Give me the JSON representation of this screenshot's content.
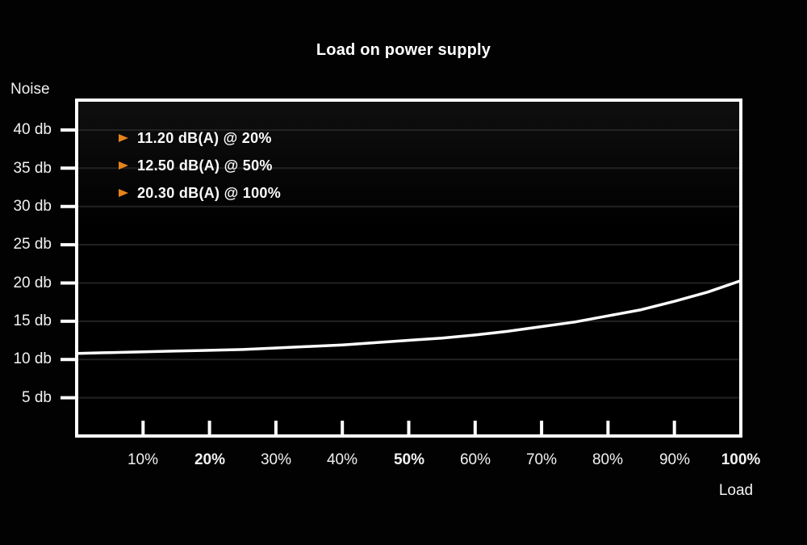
{
  "title": "Load on power supply",
  "colors": {
    "accent": "#e8821c",
    "line": "#ffffff",
    "grid": "#222222",
    "background": "#020202",
    "text": "#f2f2f2"
  },
  "legend": {
    "items": [
      {
        "label": "11.20 dB(A) @ 20%"
      },
      {
        "label": "12.50 dB(A) @ 50%"
      },
      {
        "label": "20.30 dB(A) @ 100%"
      }
    ]
  },
  "chart_data": {
    "type": "line",
    "title": "Load on power supply",
    "xlabel": "Load",
    "ylabel": "Noise",
    "xlim": [
      0,
      100
    ],
    "ylim": [
      0,
      43.9
    ],
    "grid": true,
    "legend_position": "top-left",
    "x_tick_values": [
      10,
      20,
      30,
      40,
      50,
      60,
      70,
      80,
      90,
      100
    ],
    "x_tick_labels": [
      "10%",
      "20%",
      "30%",
      "40%",
      "50%",
      "60%",
      "70%",
      "80%",
      "90%",
      "100%"
    ],
    "x_tick_bold_labels": [
      "20%",
      "50%",
      "100%"
    ],
    "y_tick_values": [
      40,
      35,
      30,
      25,
      20,
      15,
      10,
      5
    ],
    "y_tick_labels": [
      "40 db",
      "35 db",
      "30 db",
      "25 db",
      "20 db",
      "15 db",
      "10 db",
      "5 db"
    ],
    "highlighted_points": [
      {
        "load_pct": 20,
        "noise_db": 11.2
      },
      {
        "load_pct": 50,
        "noise_db": 12.5
      },
      {
        "load_pct": 100,
        "noise_db": 20.3
      }
    ],
    "curve": {
      "x": [
        0,
        5,
        10,
        15,
        20,
        25,
        30,
        35,
        40,
        45,
        50,
        55,
        60,
        65,
        70,
        75,
        80,
        85,
        90,
        95,
        100
      ],
      "y": [
        10.8,
        10.9,
        11.0,
        11.1,
        11.2,
        11.3,
        11.5,
        11.7,
        11.9,
        12.2,
        12.5,
        12.8,
        13.2,
        13.7,
        14.3,
        14.9,
        15.7,
        16.5,
        17.6,
        18.8,
        20.3
      ]
    }
  }
}
